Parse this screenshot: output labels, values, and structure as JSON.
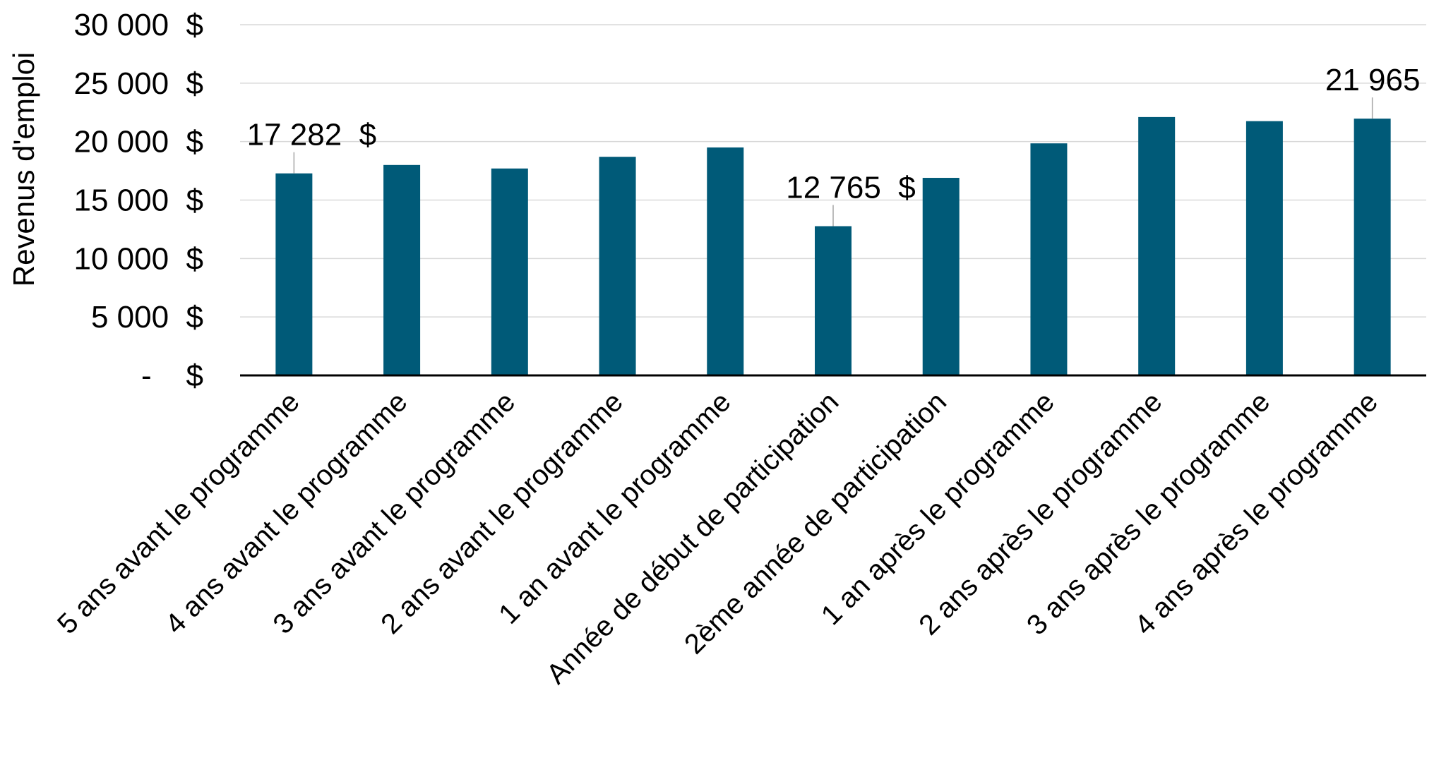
{
  "chart_data": {
    "type": "bar",
    "ylabel": "Revenus d'emploi",
    "xlabel": "",
    "ylim": [
      0,
      30000
    ],
    "grid": true,
    "bar_color": "#005A78",
    "categories": [
      "5 ans avant le programme",
      "4 ans avant le programme",
      "3 ans avant le programme",
      "2 ans avant le programme",
      "1 an avant le programme",
      "Année de début de participation",
      "2ème année de participation",
      "1 an après le programme",
      "2 ans après le programme",
      "3 ans après le programme",
      "4 ans après le programme"
    ],
    "values": [
      17282,
      18000,
      17700,
      18700,
      19500,
      12765,
      16900,
      19850,
      22100,
      21750,
      21965
    ],
    "y_ticks": [
      {
        "value": 0,
        "label": "-    $"
      },
      {
        "value": 5000,
        "label": "5 000  $"
      },
      {
        "value": 10000,
        "label": "10 000  $"
      },
      {
        "value": 15000,
        "label": "15 000  $"
      },
      {
        "value": 20000,
        "label": "20 000  $"
      },
      {
        "value": 25000,
        "label": "25 000  $"
      },
      {
        "value": 30000,
        "label": "30 000  $"
      }
    ],
    "data_labels": [
      {
        "index": 0,
        "text": "17 282  $"
      },
      {
        "index": 5,
        "text": "12 765  $"
      },
      {
        "index": 10,
        "text": "21 965  $"
      }
    ]
  }
}
